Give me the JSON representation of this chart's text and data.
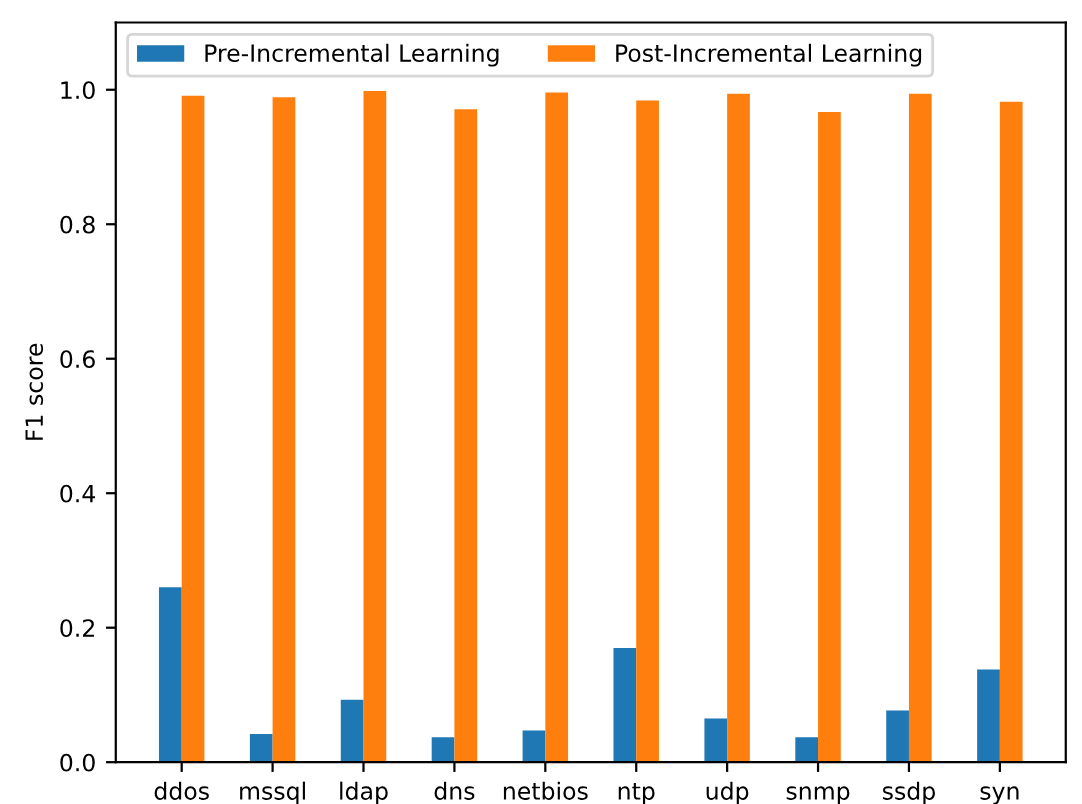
{
  "chart_data": {
    "type": "bar",
    "ylabel": "F1 score",
    "categories": [
      "ddos",
      "mssql",
      "ldap",
      "dns",
      "netbios",
      "ntp",
      "udp",
      "snmp",
      "ssdp",
      "syn"
    ],
    "series": [
      {
        "name": "Pre-Incremental Learning",
        "color": "#1f77b4",
        "values": [
          0.26,
          0.042,
          0.093,
          0.037,
          0.047,
          0.17,
          0.065,
          0.037,
          0.077,
          0.138
        ]
      },
      {
        "name": "Post-Incremental Learning",
        "color": "#ff7f0e",
        "values": [
          0.991,
          0.989,
          0.998,
          0.971,
          0.996,
          0.984,
          0.994,
          0.967,
          0.994,
          0.982
        ]
      }
    ],
    "ylim": [
      0,
      1.1
    ],
    "yticks": [
      {
        "value": 0,
        "label": "0.0"
      },
      0.2,
      0.4,
      0.6,
      0.8,
      {
        "value": 1,
        "label": "1.0"
      }
    ],
    "legend": "top left",
    "grid": false
  }
}
